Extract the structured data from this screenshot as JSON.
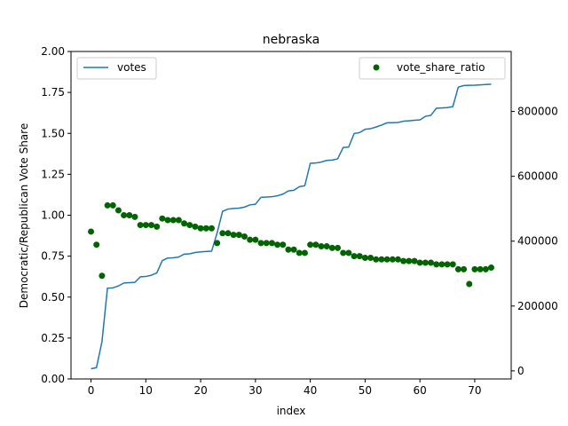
{
  "chart_data": {
    "type": "line+scatter",
    "title": "nebraska",
    "xlabel": "index",
    "ylabel_left": "Democratic/Republican Vote Share",
    "xlim": [
      -3.65,
      76.65
    ],
    "ylim_left": [
      0,
      2
    ],
    "ylim_right": [
      -25000,
      985000
    ],
    "x_ticks": [
      0,
      10,
      20,
      30,
      40,
      50,
      60,
      70
    ],
    "y_left_ticks": [
      "0.00",
      "0.25",
      "0.50",
      "0.75",
      "1.00",
      "1.25",
      "1.50",
      "1.75",
      "2.00"
    ],
    "y_right_ticks": [
      "0",
      "200000",
      "400000",
      "600000",
      "800000"
    ],
    "legend_left": {
      "position": "upper left",
      "label": "votes"
    },
    "legend_right": {
      "position": "upper right",
      "label": "vote_share_ratio"
    },
    "colors": {
      "votes": "#1f77b4",
      "vote_share_ratio": "#006400"
    },
    "series": [
      {
        "name": "votes",
        "axis": "right",
        "kind": "line",
        "x": [
          0,
          1,
          2,
          3,
          4,
          5,
          6,
          7,
          8,
          9,
          10,
          11,
          12,
          13,
          14,
          15,
          16,
          17,
          18,
          19,
          20,
          21,
          22,
          23,
          24,
          25,
          26,
          27,
          28,
          29,
          30,
          31,
          32,
          33,
          34,
          35,
          36,
          37,
          38,
          39,
          40,
          41,
          42,
          43,
          44,
          45,
          46,
          47,
          48,
          49,
          50,
          51,
          52,
          53,
          54,
          55,
          56,
          57,
          58,
          59,
          60,
          61,
          62,
          63,
          64,
          65,
          66,
          67,
          68,
          69,
          70,
          71,
          72,
          73
        ],
        "values": [
          6500,
          10000,
          90000,
          255000,
          256000,
          262000,
          271000,
          272000,
          273000,
          290000,
          291000,
          295000,
          302000,
          340000,
          348000,
          348500,
          351000,
          360000,
          361000,
          365000,
          367000,
          368000,
          369000,
          425000,
          492000,
          499000,
          501000,
          502000,
          505000,
          512000,
          514000,
          535000,
          536000,
          537000,
          540000,
          545000,
          555000,
          557000,
          568000,
          571000,
          640000,
          641000,
          644000,
          649000,
          650000,
          654000,
          689000,
          690000,
          732000,
          735000,
          745000,
          747000,
          752000,
          758000,
          765000,
          765500,
          766000,
          770000,
          771000,
          773000,
          774000,
          785000,
          788000,
          810000,
          811000,
          812000,
          815000,
          875000,
          880000,
          880500,
          881000,
          882000,
          883000,
          884000
        ]
      },
      {
        "name": "vote_share_ratio",
        "axis": "left",
        "kind": "scatter",
        "x": [
          0,
          1,
          2,
          3,
          4,
          5,
          6,
          7,
          8,
          9,
          10,
          11,
          12,
          13,
          14,
          15,
          16,
          17,
          18,
          19,
          20,
          21,
          22,
          23,
          24,
          25,
          26,
          27,
          28,
          29,
          30,
          31,
          32,
          33,
          34,
          35,
          36,
          37,
          38,
          39,
          40,
          41,
          42,
          43,
          44,
          45,
          46,
          47,
          48,
          49,
          50,
          51,
          52,
          53,
          54,
          55,
          56,
          57,
          58,
          59,
          60,
          61,
          62,
          63,
          64,
          65,
          66,
          67,
          68,
          69,
          70,
          71,
          72,
          73
        ],
        "values": [
          0.9,
          0.82,
          0.63,
          1.06,
          1.06,
          1.03,
          1.0,
          1.0,
          0.99,
          0.94,
          0.94,
          0.94,
          0.93,
          0.98,
          0.97,
          0.97,
          0.97,
          0.95,
          0.94,
          0.93,
          0.92,
          0.92,
          0.92,
          0.83,
          0.89,
          0.89,
          0.88,
          0.88,
          0.87,
          0.85,
          0.85,
          0.83,
          0.83,
          0.83,
          0.82,
          0.82,
          0.79,
          0.79,
          0.77,
          0.77,
          0.82,
          0.82,
          0.81,
          0.81,
          0.8,
          0.8,
          0.77,
          0.77,
          0.75,
          0.75,
          0.74,
          0.74,
          0.73,
          0.73,
          0.73,
          0.73,
          0.73,
          0.72,
          0.72,
          0.72,
          0.71,
          0.71,
          0.71,
          0.7,
          0.7,
          0.7,
          0.7,
          0.67,
          0.67,
          0.58,
          0.67,
          0.67,
          0.67,
          0.68
        ]
      }
    ]
  }
}
